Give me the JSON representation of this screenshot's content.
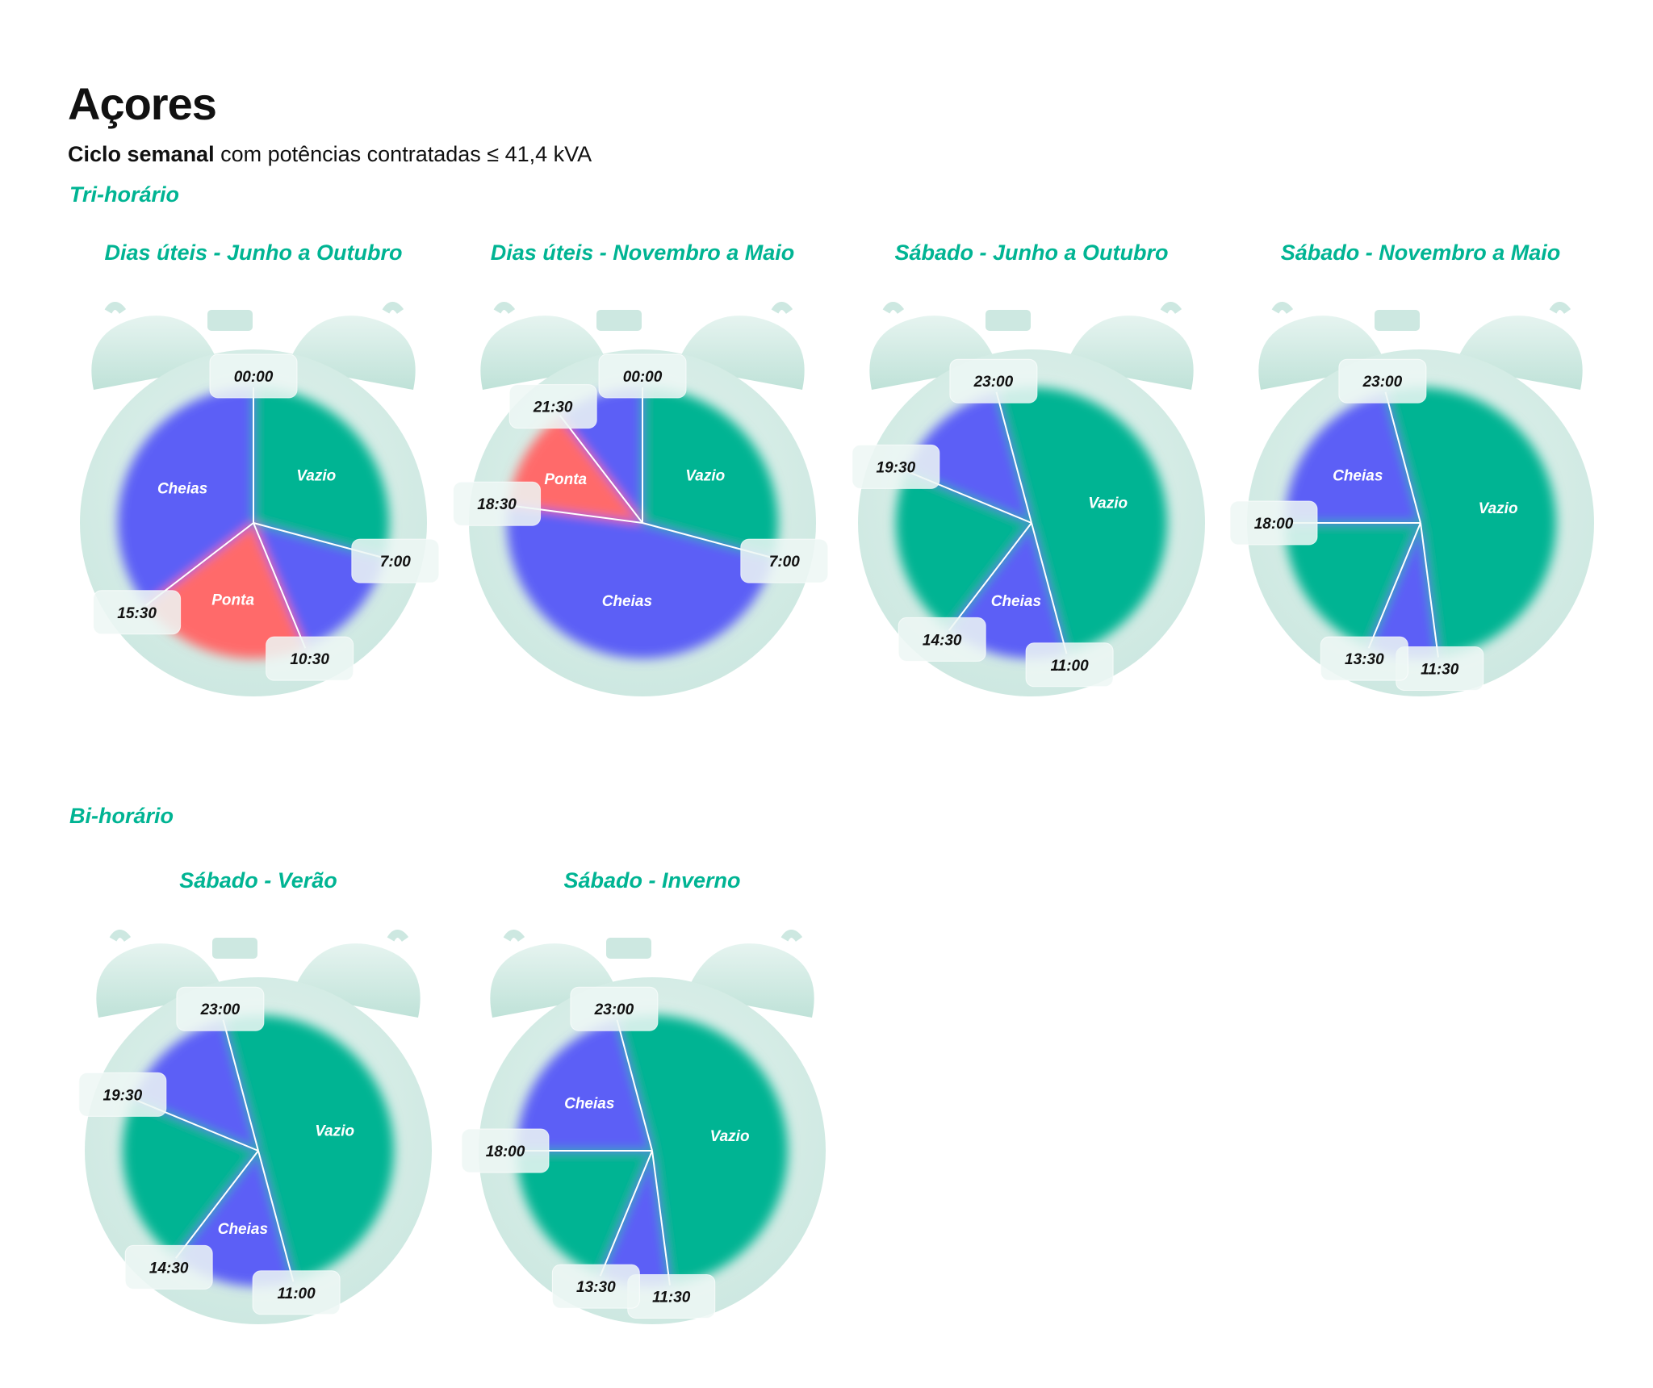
{
  "title": "Açores",
  "subtitle": {
    "bold": "Ciclo semanal",
    "rest": " com potências contratadas ≤ 41,4 kVA"
  },
  "sections": {
    "tri": "Tri-horário",
    "bi": "Bi-horário"
  },
  "colors": {
    "vazio": "#00b493",
    "cheias": "#5b5ff6",
    "ponta": "#ff6b6b",
    "clock": "#cde8e1",
    "accent": "#00b493"
  },
  "chart_data": [
    {
      "type": "pie",
      "title": "Dias úteis - Junho a Outubro",
      "segments": [
        {
          "label": "Vazio",
          "start": "00:00",
          "end": "07:00",
          "tariff": "vazio"
        },
        {
          "label": "",
          "start": "07:00",
          "end": "10:30",
          "tariff": "cheias"
        },
        {
          "label": "Ponta",
          "start": "10:30",
          "end": "15:30",
          "tariff": "ponta"
        },
        {
          "label": "Cheias",
          "start": "15:30",
          "end": "00:00",
          "tariff": "cheias"
        }
      ],
      "time_labels": [
        "00:00",
        "7:00",
        "10:30",
        "15:30"
      ]
    },
    {
      "type": "pie",
      "title": "Dias úteis - Novembro a Maio",
      "segments": [
        {
          "label": "Vazio",
          "start": "00:00",
          "end": "07:00",
          "tariff": "vazio"
        },
        {
          "label": "Cheias",
          "start": "07:00",
          "end": "18:30",
          "tariff": "cheias"
        },
        {
          "label": "Ponta",
          "start": "18:30",
          "end": "21:30",
          "tariff": "ponta"
        },
        {
          "label": "",
          "start": "21:30",
          "end": "00:00",
          "tariff": "cheias"
        }
      ],
      "time_labels": [
        "00:00",
        "7:00",
        "18:30",
        "21:30"
      ]
    },
    {
      "type": "pie",
      "title": "Sábado - Junho a Outubro",
      "segments": [
        {
          "label": "Vazio",
          "start": "23:00",
          "end": "11:00",
          "tariff": "vazio"
        },
        {
          "label": "Cheias",
          "start": "11:00",
          "end": "14:30",
          "tariff": "cheias"
        },
        {
          "label": "",
          "start": "14:30",
          "end": "19:30",
          "tariff": "vazio"
        },
        {
          "label": "",
          "start": "19:30",
          "end": "23:00",
          "tariff": "cheias"
        }
      ],
      "time_labels": [
        "23:00",
        "11:00",
        "14:30",
        "19:30"
      ]
    },
    {
      "type": "pie",
      "title": "Sábado - Novembro a Maio",
      "segments": [
        {
          "label": "Vazio",
          "start": "23:00",
          "end": "11:30",
          "tariff": "vazio"
        },
        {
          "label": "",
          "start": "11:30",
          "end": "13:30",
          "tariff": "cheias"
        },
        {
          "label": "",
          "start": "13:30",
          "end": "18:00",
          "tariff": "vazio"
        },
        {
          "label": "Cheias",
          "start": "18:00",
          "end": "23:00",
          "tariff": "cheias"
        }
      ],
      "time_labels": [
        "23:00",
        "11:30",
        "13:30",
        "18:00"
      ]
    },
    {
      "type": "pie",
      "title": "Sábado - Verão",
      "segments": [
        {
          "label": "Vazio",
          "start": "23:00",
          "end": "11:00",
          "tariff": "vazio"
        },
        {
          "label": "Cheias",
          "start": "11:00",
          "end": "14:30",
          "tariff": "cheias"
        },
        {
          "label": "",
          "start": "14:30",
          "end": "19:30",
          "tariff": "vazio"
        },
        {
          "label": "",
          "start": "19:30",
          "end": "23:00",
          "tariff": "cheias"
        }
      ],
      "time_labels": [
        "23:00",
        "11:00",
        "14:30",
        "19:30"
      ]
    },
    {
      "type": "pie",
      "title": "Sábado - Inverno",
      "segments": [
        {
          "label": "Vazio",
          "start": "23:00",
          "end": "11:30",
          "tariff": "vazio"
        },
        {
          "label": "",
          "start": "11:30",
          "end": "13:30",
          "tariff": "cheias"
        },
        {
          "label": "",
          "start": "13:30",
          "end": "18:00",
          "tariff": "vazio"
        },
        {
          "label": "Cheias",
          "start": "18:00",
          "end": "23:00",
          "tariff": "cheias"
        }
      ],
      "time_labels": [
        "23:00",
        "11:30",
        "13:30",
        "18:00"
      ]
    }
  ]
}
